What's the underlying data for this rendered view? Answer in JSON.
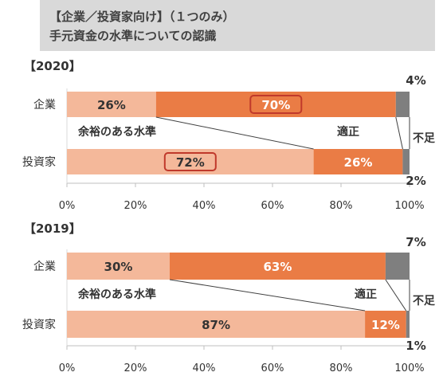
{
  "header": {
    "line1": "【企業／投資家向け】（１つのみ）",
    "line2": "手元資金の水準についての認識"
  },
  "colors": {
    "ample": "#f4b89a",
    "appropriate": "#ea7c45",
    "insufficient": "#7f7f7f",
    "highlight_border": "#c0392b"
  },
  "chart_data": [
    {
      "type": "bar",
      "stacked": "horizontal-100",
      "title": "【2020】",
      "categories": [
        "企業",
        "投資家"
      ],
      "series": [
        {
          "name": "余裕のある水準",
          "values": [
            26,
            72
          ],
          "labels": [
            "26%",
            "72%"
          ]
        },
        {
          "name": "適正",
          "values": [
            70,
            26
          ],
          "labels": [
            "70%",
            "26%"
          ]
        },
        {
          "name": "不足",
          "values": [
            4,
            2
          ],
          "labels": [
            "4%",
            "2%"
          ]
        }
      ],
      "highlighted": [
        {
          "series": 1,
          "category": 0
        },
        {
          "series": 0,
          "category": 1
        }
      ],
      "xlim": [
        0,
        100
      ],
      "xticks": [
        "0%",
        "20%",
        "40%",
        "60%",
        "80%",
        "100%"
      ]
    },
    {
      "type": "bar",
      "stacked": "horizontal-100",
      "title": "【2019】",
      "categories": [
        "企業",
        "投資家"
      ],
      "series": [
        {
          "name": "余裕のある水準",
          "values": [
            30,
            87
          ],
          "labels": [
            "30%",
            "87%"
          ]
        },
        {
          "name": "適正",
          "values": [
            63,
            12
          ],
          "labels": [
            "63%",
            "12%"
          ]
        },
        {
          "name": "不足",
          "values": [
            7,
            1
          ],
          "labels": [
            "7%",
            "1%"
          ]
        }
      ],
      "highlighted": [],
      "xlim": [
        0,
        100
      ],
      "xticks": [
        "0%",
        "20%",
        "40%",
        "60%",
        "80%",
        "100%"
      ]
    }
  ]
}
